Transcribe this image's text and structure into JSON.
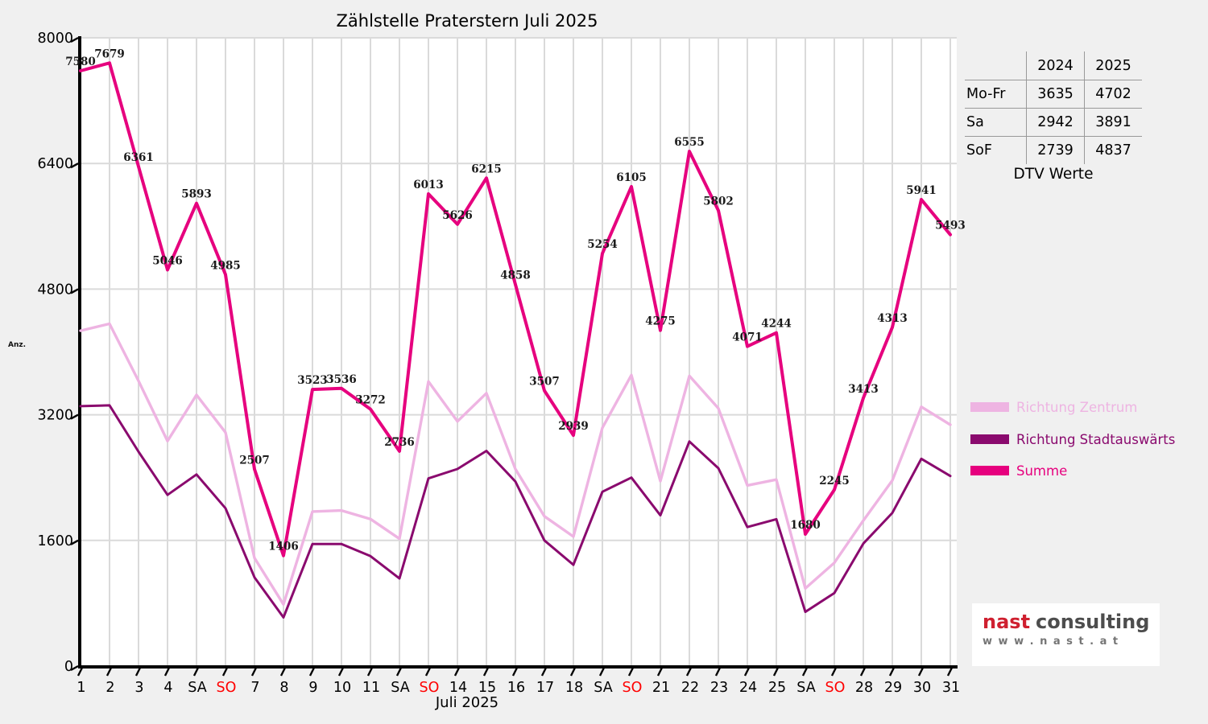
{
  "chart_data": {
    "type": "line",
    "title": "Zählstelle Praterstern Juli 2025",
    "xlabel": "Juli 2025",
    "ylabel": "Anz.",
    "ylim": [
      0,
      8000
    ],
    "y_ticks": [
      0,
      1600,
      3200,
      4800,
      6400,
      8000
    ],
    "x_labels": [
      "1",
      "2",
      "3",
      "4",
      "SA",
      "SO",
      "7",
      "8",
      "9",
      "10",
      "11",
      "SA",
      "SO",
      "14",
      "15",
      "16",
      "17",
      "18",
      "SA",
      "SO",
      "21",
      "22",
      "23",
      "24",
      "25",
      "SA",
      "SO",
      "28",
      "29",
      "30",
      "31"
    ],
    "sunday_indices": [
      5,
      12,
      19,
      26
    ],
    "grid_on": true,
    "legend_position": "right",
    "series": [
      {
        "name": "Richtung Zentrum",
        "color": "#eeb4e2",
        "values": [
          4270,
          4359,
          3631,
          2866,
          3453,
          2975,
          1377,
          786,
          1968,
          1981,
          1872,
          1621,
          3623,
          3116,
          3475,
          2508,
          1907,
          1649,
          3034,
          3705,
          2355,
          3695,
          3282,
          2301,
          2374,
          990,
          1315,
          1853,
          2363,
          3301,
          3073
        ]
      },
      {
        "name": "Richtung Stadtauswärts",
        "color": "#8a0a6e",
        "values": [
          3310,
          3320,
          2730,
          2180,
          2440,
          2010,
          1130,
          620,
          1555,
          1555,
          1400,
          1115,
          2390,
          2510,
          2740,
          2350,
          1600,
          1290,
          2220,
          2400,
          1920,
          2860,
          2520,
          1770,
          1870,
          690,
          930,
          1560,
          1950,
          2640,
          2420
        ]
      },
      {
        "name": "Summe",
        "color": "#e6007e",
        "labeled": true,
        "values": [
          7580,
          7679,
          6361,
          5046,
          5893,
          4985,
          2507,
          1406,
          3523,
          3536,
          3272,
          2736,
          6013,
          5626,
          6215,
          4858,
          3507,
          2939,
          5254,
          6105,
          4275,
          6555,
          5802,
          4071,
          4244,
          1680,
          2245,
          3413,
          4313,
          5941,
          5493
        ]
      }
    ],
    "colors": {
      "grid": "#dadada",
      "axis": "#000000",
      "sunday_label": "#ff0000",
      "weekday_label": "#000000",
      "data_label": "#1a1a1a",
      "plot_bg": "#ffffff",
      "page_bg": "#f0f0f0"
    }
  },
  "table": {
    "col_headers": [
      "2024",
      "2025"
    ],
    "rows": [
      {
        "label": "Mo-Fr",
        "v2024": "3635",
        "v2025": "4702"
      },
      {
        "label": "Sa",
        "v2024": "2942",
        "v2025": "3891"
      },
      {
        "label": "SoF",
        "v2024": "2739",
        "v2025": "4837"
      }
    ],
    "caption": "DTV Werte"
  },
  "logo": {
    "brand_bold": "nast",
    "brand_rest": "consulting",
    "url": "w w w . n a s t . a t"
  }
}
